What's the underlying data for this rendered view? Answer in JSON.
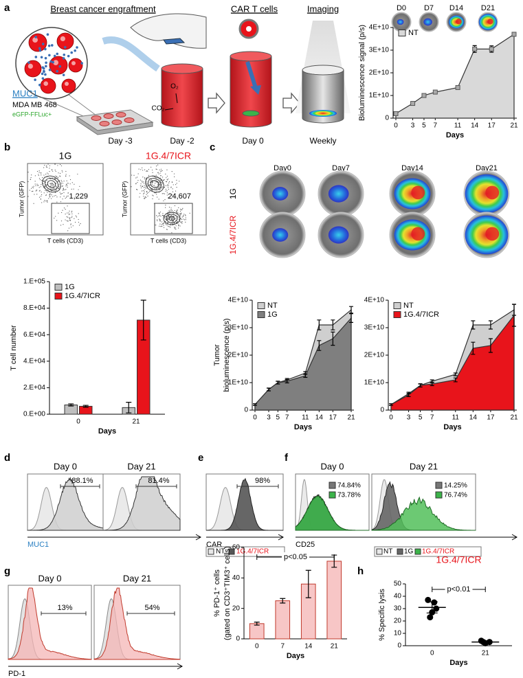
{
  "panel_labels": [
    "a",
    "b",
    "c",
    "d",
    "e",
    "f",
    "g",
    "h"
  ],
  "panel_a": {
    "steps": [
      "Breast cancer engraftment",
      "CAR T cells",
      "Imaging"
    ],
    "cell_line": {
      "antigen": "MUC1",
      "name": "MDA MB 468",
      "reporter": "eGFP-FFLuc+"
    },
    "timepoints": [
      "Day -3",
      "Day -2",
      "Day 0",
      "Weekly"
    ],
    "gases": [
      "O₂",
      "CO₂"
    ],
    "image_labels": [
      "D0",
      "D7",
      "D14",
      "D21"
    ]
  },
  "panel_b": {
    "titles": [
      "1G",
      "1G.4/7ICR"
    ],
    "y_label": "Tumor (GFP)",
    "x_label": "T cells (CD3)",
    "counts": [
      "1,229",
      "24,607"
    ]
  },
  "panel_c": {
    "days": [
      "Day0",
      "Day7",
      "Day14",
      "Day21"
    ],
    "rows": [
      "1G",
      "1G.4/7ICR"
    ]
  },
  "panel_d": {
    "days": [
      "Day 0",
      "Day 21"
    ],
    "percents": [
      "88.1%",
      "81.4%"
    ],
    "marker": "MUC1"
  },
  "panel_e": {
    "percent": "98%",
    "marker": "CAR",
    "legend": [
      "NT",
      "1G.4/7ICR"
    ]
  },
  "panel_f": {
    "days": [
      "Day 0",
      "Day 21"
    ],
    "percents": [
      [
        "74.84%",
        "73.78%"
      ],
      [
        "14.25%",
        "76.74%"
      ]
    ],
    "marker": "CD25",
    "legend": [
      "NT",
      "1G",
      "1G.4/7ICR"
    ]
  },
  "panel_g": {
    "days": [
      "Day 0",
      "Day 21"
    ],
    "percents": [
      "13%",
      "54%"
    ],
    "marker": "PD-1"
  },
  "chart_data": [
    {
      "type": "area",
      "x": [
        0,
        3,
        5,
        7,
        11,
        14,
        17,
        21
      ],
      "xlim": [
        0,
        21
      ],
      "xticks": [
        0,
        3,
        5,
        7,
        11,
        14,
        17,
        21
      ],
      "ylim": [
        0,
        40000000000.0
      ],
      "yticks": [
        0,
        {
          "value": 10000000000.0,
          "label": "1E+10"
        },
        {
          "value": 20000000000.0,
          "label": "2E+10"
        },
        {
          "value": 30000000000.0,
          "label": "3E+10"
        },
        {
          "value": 40000000000.0,
          "label": "4E+10"
        }
      ],
      "y_label": "Bioluminescence signal (p/s)",
      "x_label": "Days",
      "legend": "upper left",
      "marker": "square",
      "series": [
        {
          "name": "NT",
          "color": "#d9d9d9",
          "values": [
            2000000000.0,
            6500000000.0,
            10000000000.0,
            11500000000.0,
            13500000000.0,
            30500000000.0,
            30500000000.0,
            37000000000.0
          ],
          "errors": [
            300000000.0,
            500000000.0,
            400000000.0,
            600000000.0,
            400000000.0,
            1500000000.0,
            1400000000.0,
            800000000.0
          ]
        }
      ]
    },
    {
      "type": "bar",
      "categories": [
        "0",
        "21"
      ],
      "ylim": [
        0,
        100000
      ],
      "yticks": [
        {
          "value": 0,
          "label": "0.E+00"
        },
        {
          "value": 20000,
          "label": "2.E+04"
        },
        {
          "value": 40000,
          "label": "4.E+04"
        },
        {
          "value": 60000,
          "label": "6.E+04"
        },
        {
          "value": 80000,
          "label": "8.E+04"
        },
        {
          "value": 100000,
          "label": "1.E+05"
        }
      ],
      "y_label": "T cell number",
      "x_label": "Days",
      "legend": "upper left",
      "series": [
        {
          "name": "1G",
          "color": "#bfbfbf",
          "values": [
            7000,
            5000
          ],
          "errors": [
            800,
            4000
          ]
        },
        {
          "name": "1G.4/7ICR",
          "color": "#e8141b",
          "values": [
            6000,
            71000
          ],
          "errors": [
            700,
            15000
          ]
        }
      ]
    },
    {
      "type": "area",
      "x": [
        0,
        3,
        5,
        7,
        11,
        14,
        17,
        21
      ],
      "xlim": [
        0,
        21
      ],
      "xticks": [
        0,
        3,
        5,
        7,
        11,
        14,
        17,
        21
      ],
      "ylim": [
        0,
        40000000000.0
      ],
      "yticks": [
        0,
        {
          "value": 10000000000.0,
          "label": "1E+10"
        },
        {
          "value": 20000000000.0,
          "label": "2E+10"
        },
        {
          "value": 30000000000.0,
          "label": "3E+10"
        },
        {
          "value": 40000000000.0,
          "label": "4E+10"
        }
      ],
      "y_label": [
        "Tumor",
        "bioluminescence (p/s)"
      ],
      "x_label": "Days",
      "legend": "upper left",
      "series": [
        {
          "name": "NT",
          "color": "#cfcfcf",
          "values": [
            2000000000.0,
            7500000000.0,
            10000000000.0,
            11000000000.0,
            13500000000.0,
            31000000000.0,
            31000000000.0,
            36500000000.0
          ],
          "errors": [
            300000000.0,
            500000000.0,
            500000000.0,
            500000000.0,
            500000000.0,
            1800000000.0,
            1800000000.0,
            1200000000.0
          ]
        },
        {
          "name": "1G",
          "color": "#7f7f7f",
          "values": [
            2000000000.0,
            7500000000.0,
            10000000000.0,
            10500000000.0,
            12500000000.0,
            23500000000.0,
            26000000000.0,
            33500000000.0
          ],
          "errors": [
            300000000.0,
            500000000.0,
            500000000.0,
            600000000.0,
            600000000.0,
            1800000000.0,
            2400000000.0,
            1600000000.0
          ]
        }
      ]
    },
    {
      "type": "area",
      "x": [
        0,
        3,
        5,
        7,
        11,
        14,
        17,
        21
      ],
      "xlim": [
        0,
        21
      ],
      "xticks": [
        0,
        3,
        5,
        7,
        11,
        14,
        17,
        21
      ],
      "ylim": [
        0,
        40000000000.0
      ],
      "yticks": [
        0,
        {
          "value": 10000000000.0,
          "label": "1E+10"
        },
        {
          "value": 20000000000.0,
          "label": "2E+10"
        },
        {
          "value": 30000000000.0,
          "label": "3E+10"
        },
        {
          "value": 40000000000.0,
          "label": "4E+10"
        }
      ],
      "x_label": "Days",
      "legend": "upper left",
      "series": [
        {
          "name": "NT",
          "color": "#cfcfcf",
          "values": [
            2000000000.0,
            6000000000.0,
            9000000000.0,
            10500000000.0,
            13000000000.0,
            31000000000.0,
            31000000000.0,
            36500000000.0
          ],
          "errors": [
            300000000.0,
            500000000.0,
            500000000.0,
            500000000.0,
            500000000.0,
            1500000000.0,
            1500000000.0,
            2000000000.0
          ]
        },
        {
          "name": "1G.4/7ICR",
          "color": "#e8141b",
          "values": [
            2000000000.0,
            5500000000.0,
            9000000000.0,
            9500000000.0,
            11000000000.0,
            22500000000.0,
            23500000000.0,
            34500000000.0
          ],
          "errors": [
            300000000.0,
            600000000.0,
            600000000.0,
            600000000.0,
            700000000.0,
            2200000000.0,
            2500000000.0,
            4000000000.0
          ]
        }
      ]
    },
    {
      "type": "bar",
      "categories": [
        "0",
        "7",
        "14",
        "21"
      ],
      "ylim": [
        0,
        60
      ],
      "yticks": [
        0,
        20,
        40,
        60
      ],
      "y_label": [
        "% PD-1⁺ cells",
        "(gated on CD3⁺TIM3⁺ cells)"
      ],
      "x_label": "Days",
      "annotation": "p<0.05",
      "edgecolor": "#c0392b",
      "series": [
        {
          "color": "#f7c6c6",
          "values": [
            10,
            25,
            36,
            51
          ],
          "errors": [
            1,
            1.5,
            9,
            4
          ]
        }
      ]
    },
    {
      "type": "scatter",
      "title": "1G.4/7ICR",
      "title_color": "#e8141b",
      "categories": [
        "0",
        "21"
      ],
      "points": [
        [
          37,
          27,
          30,
          23,
          35
        ],
        [
          4,
          2,
          3,
          3
        ]
      ],
      "means": [
        31,
        3
      ],
      "errors": [
        4.5,
        1
      ],
      "ylim": [
        0,
        50
      ],
      "yticks": [
        0,
        10,
        20,
        30,
        40,
        50
      ],
      "y_label": "% Specific lysis",
      "x_label": "Days",
      "annotation": "p<0.01",
      "color": "#000000"
    }
  ]
}
